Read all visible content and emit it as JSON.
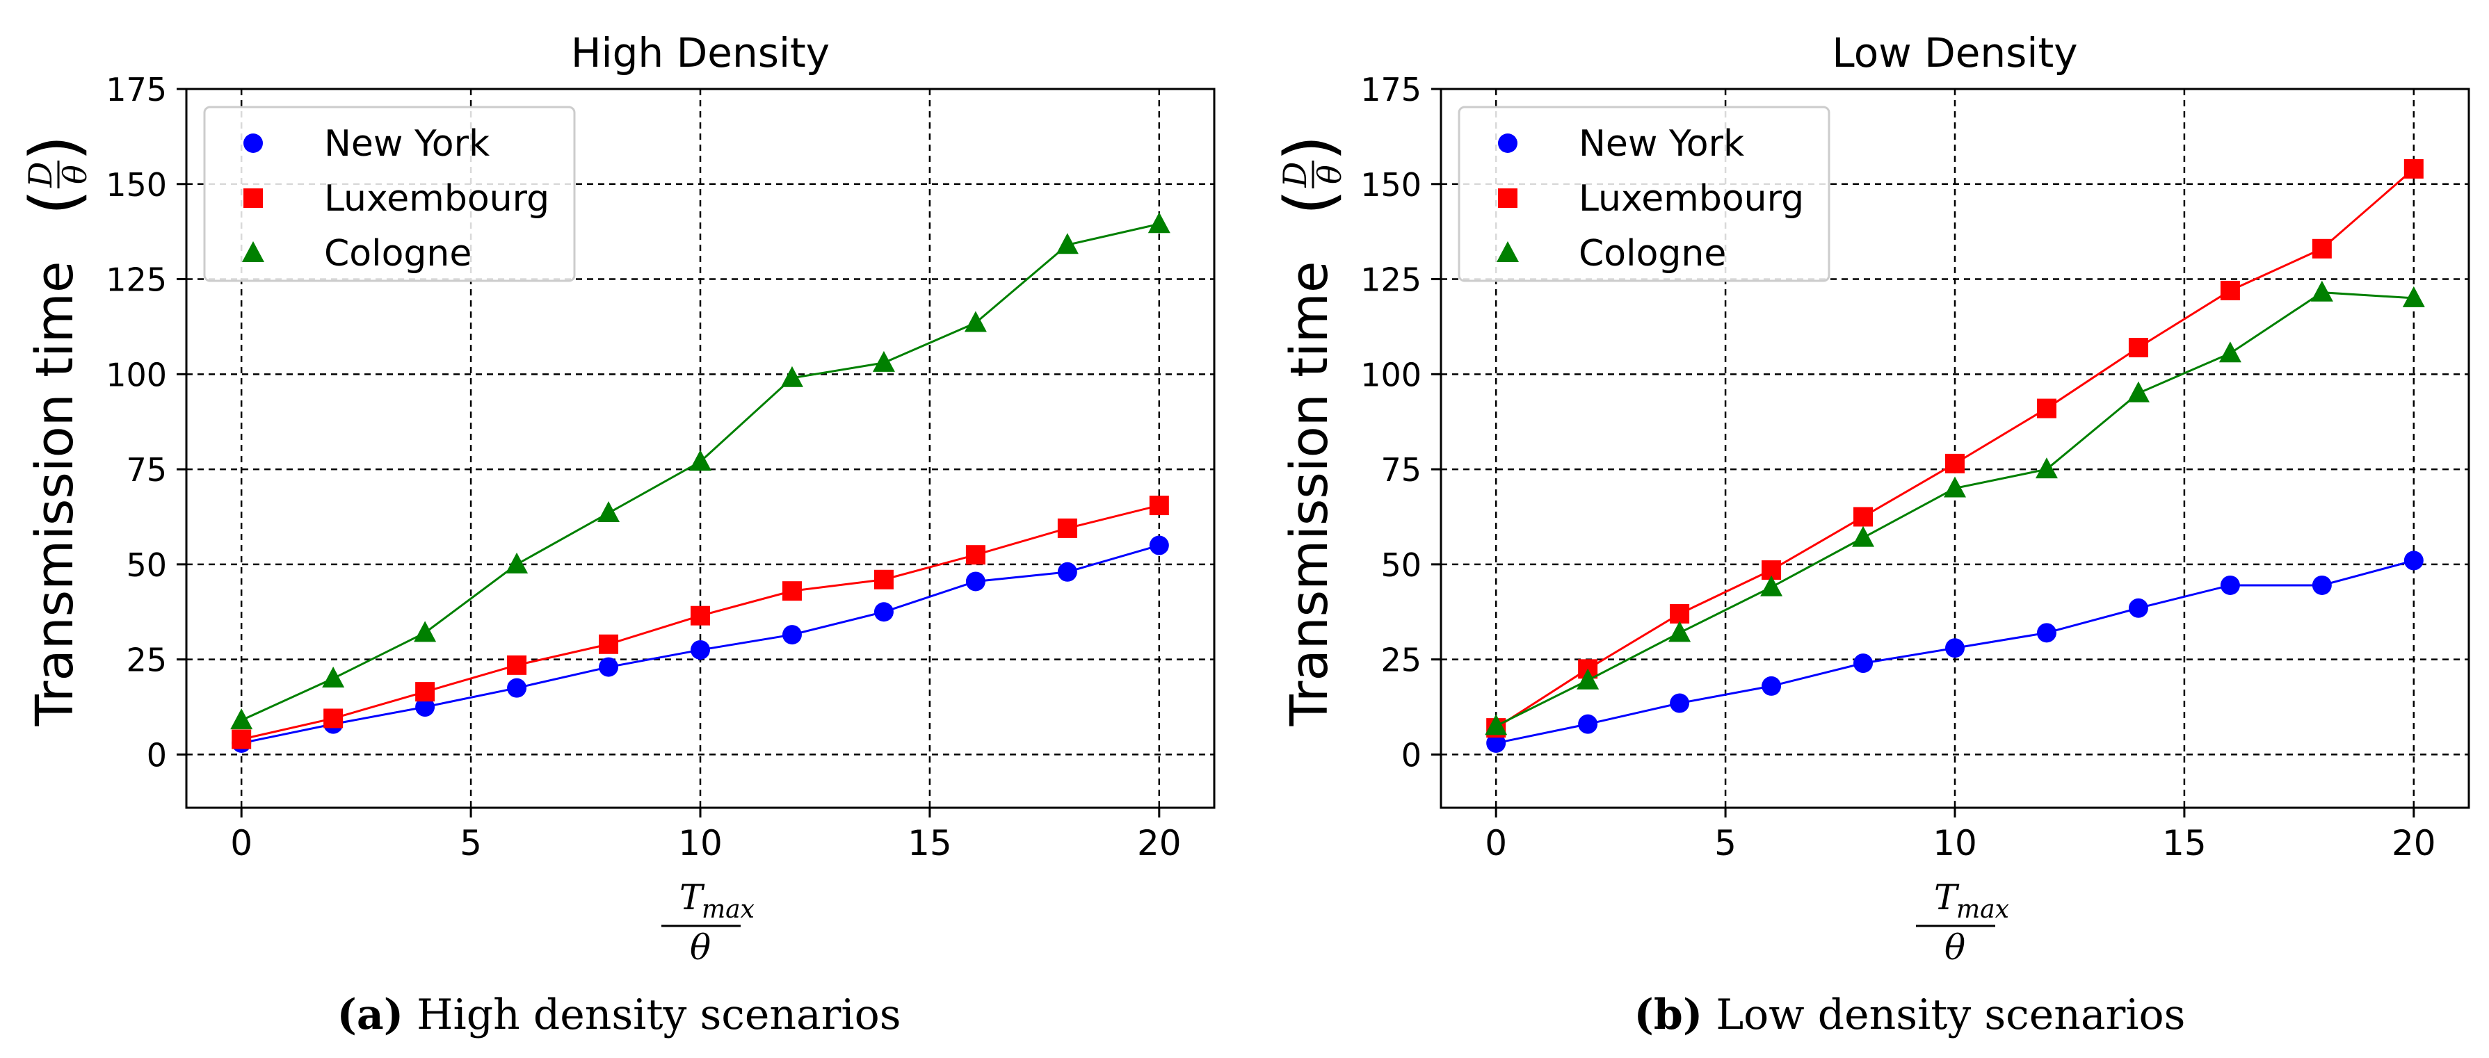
{
  "chart_data": [
    {
      "type": "line",
      "title": "High Density",
      "xlabel": {
        "main": "T",
        "sub": "max",
        "denominator": "θ"
      },
      "ylabel": {
        "text": "Transmission time",
        "numerator": "D",
        "denominator": "θ"
      },
      "xlim": [
        -1.2,
        21.2
      ],
      "ylim": [
        -14,
        175
      ],
      "xticks": [
        0,
        5,
        10,
        15,
        20
      ],
      "yticks": [
        0,
        25,
        50,
        75,
        100,
        125,
        150,
        175
      ],
      "grid": true,
      "legend_position": "top-left",
      "x": [
        0,
        2,
        4,
        6,
        8,
        10,
        12,
        14,
        16,
        18,
        20
      ],
      "series": [
        {
          "name": "New York",
          "color": "#0000ff",
          "marker": "circle",
          "values": [
            3,
            8,
            12.5,
            17.5,
            23,
            27.5,
            31.5,
            37.5,
            45.5,
            48,
            55
          ]
        },
        {
          "name": "Luxembourg",
          "color": "#ff0000",
          "marker": "square",
          "values": [
            4,
            9.5,
            16.5,
            23.5,
            29,
            36.5,
            43,
            46,
            52.5,
            59.5,
            65.5
          ]
        },
        {
          "name": "Cologne",
          "color": "#008000",
          "marker": "triangle",
          "values": [
            9,
            20,
            32,
            50,
            63.5,
            77,
            99,
            103,
            113.5,
            134,
            139.5
          ]
        }
      ],
      "caption": {
        "label": "(a)",
        "text": "High density scenarios"
      }
    },
    {
      "type": "line",
      "title": "Low Density",
      "xlabel": {
        "main": "T",
        "sub": "max",
        "denominator": "θ"
      },
      "ylabel": {
        "text": "Transmission time",
        "numerator": "D",
        "denominator": "θ"
      },
      "xlim": [
        -1.2,
        21.2
      ],
      "ylim": [
        -14,
        175
      ],
      "xticks": [
        0,
        5,
        10,
        15,
        20
      ],
      "yticks": [
        0,
        25,
        50,
        75,
        100,
        125,
        150,
        175
      ],
      "grid": true,
      "legend_position": "top-left",
      "x": [
        0,
        2,
        4,
        6,
        8,
        10,
        12,
        14,
        16,
        18,
        20
      ],
      "series": [
        {
          "name": "New York",
          "color": "#0000ff",
          "marker": "circle",
          "values": [
            3,
            8,
            13.5,
            18,
            24,
            28,
            32,
            38.5,
            44.5,
            44.5,
            51
          ]
        },
        {
          "name": "Luxembourg",
          "color": "#ff0000",
          "marker": "square",
          "values": [
            7,
            22.5,
            37,
            48.5,
            62.5,
            76.5,
            91,
            107,
            122,
            133,
            154
          ]
        },
        {
          "name": "Cologne",
          "color": "#008000",
          "marker": "triangle",
          "values": [
            7.5,
            19.5,
            32,
            44,
            57,
            70,
            75,
            95,
            105.5,
            121.5,
            120
          ]
        }
      ],
      "caption": {
        "label": "(b)",
        "text": "Low density scenarios"
      }
    }
  ]
}
